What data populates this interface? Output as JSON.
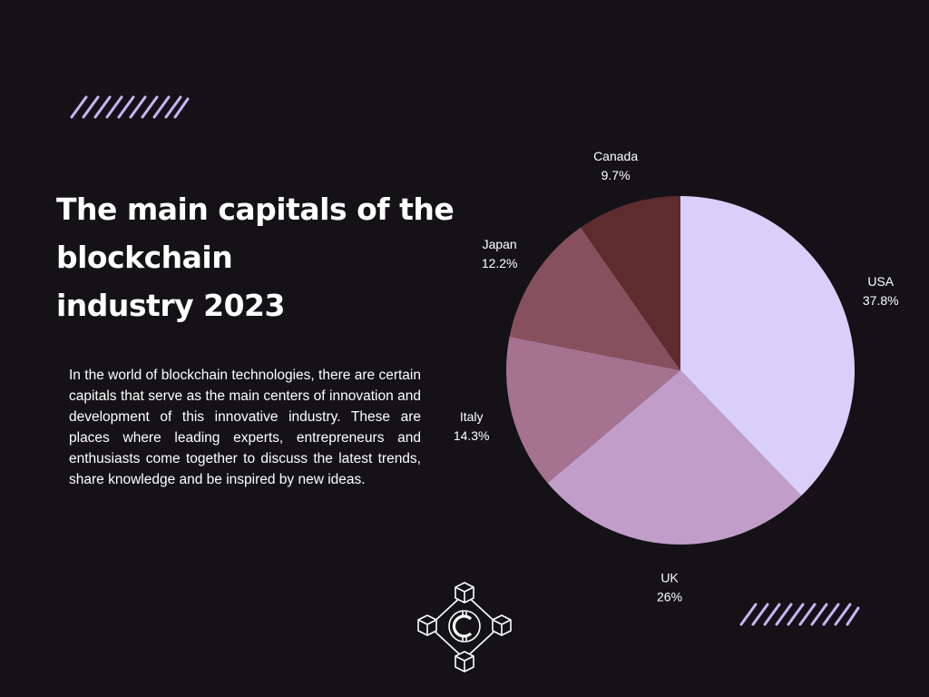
{
  "title": "The main capitals of the\nblockchain\n industry 2023",
  "description": "In the world of blockchain technologies, there are certain capitals that serve as the main centers of innovation and development of this innovative industry. These are places where leading experts, entrepreneurs and enthusiasts come together to discuss the latest trends, share knowledge and be inspired by new ideas.",
  "colors": {
    "background": "#141216",
    "accent": "#c4b5f5"
  },
  "icons": {
    "decoration": "diagonal-stripes",
    "logo": "blockchain-coin-icon"
  },
  "chart_data": {
    "type": "pie",
    "title": "",
    "start_angle_deg": 0,
    "direction": "clockwise",
    "slices": [
      {
        "label": "USA",
        "value_label": "37.8%",
        "value": 37.8,
        "color": "#d8d0fb"
      },
      {
        "label": "UK",
        "value_label": "26%",
        "value": 26.0,
        "color": "#c19dca"
      },
      {
        "label": "Italy",
        "value_label": "14.3%",
        "value": 14.3,
        "color": "#a57390"
      },
      {
        "label": "Japan",
        "value_label": "12.2%",
        "value": 12.2,
        "color": "#87505f"
      },
      {
        "label": "Canada",
        "value_label": "9.7%",
        "value": 9.7,
        "color": "#5e2b2f"
      }
    ]
  }
}
